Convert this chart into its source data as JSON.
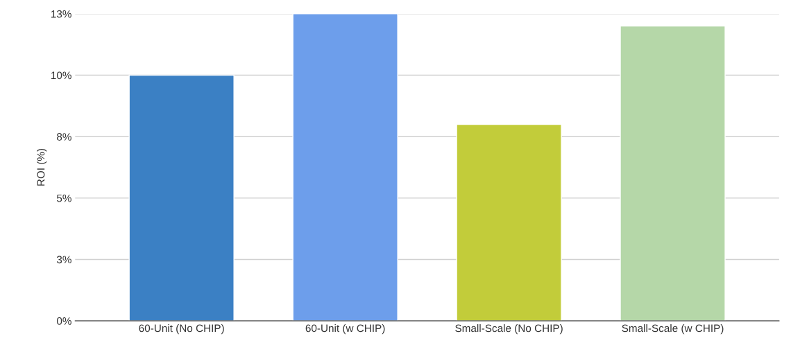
{
  "chart_data": {
    "type": "bar",
    "ylabel": "ROI (%)",
    "categories": [
      "60-Unit (No CHIP)",
      "60-Unit (w CHIP)",
      "Small-Scale (No CHIP)",
      "Small-Scale (w CHIP)"
    ],
    "values": [
      10.0,
      12.5,
      8.0,
      12.0
    ],
    "colors": [
      "#3b80c4",
      "#6d9eeb",
      "#c2cc3a",
      "#b5d7a8"
    ],
    "ylim": [
      0,
      12.5
    ],
    "yticks": [
      {
        "value": 0,
        "label": "0%"
      },
      {
        "value": 2.5,
        "label": "3%"
      },
      {
        "value": 5,
        "label": "5%"
      },
      {
        "value": 7.5,
        "label": "8%"
      },
      {
        "value": 10,
        "label": "10%"
      },
      {
        "value": 12.5,
        "label": "13%"
      }
    ],
    "grid": "y",
    "legend": false
  }
}
